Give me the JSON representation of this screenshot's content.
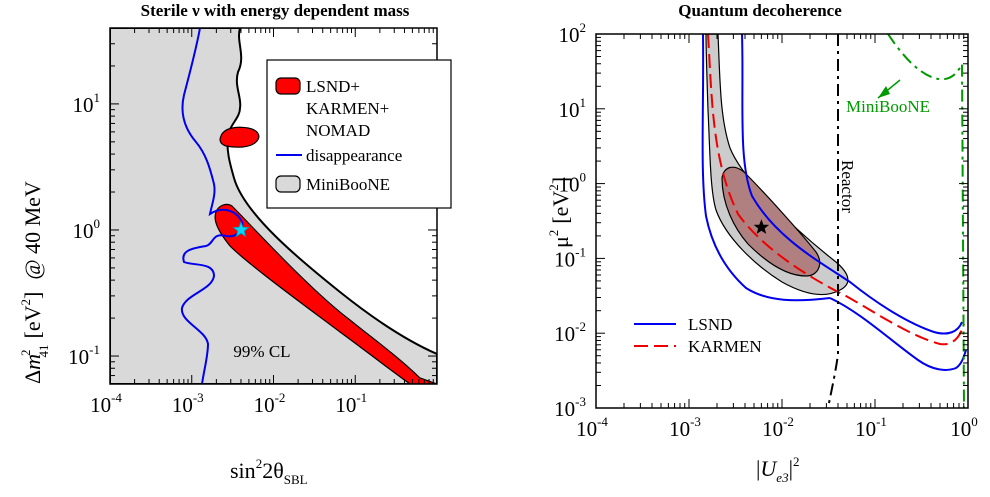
{
  "chart_data": [
    {
      "type": "contour",
      "title": "Sterile ν with energy dependent mass",
      "xlabel": {
        "base": "sin",
        "sup1": "2",
        "mid": "2θ",
        "sub": "SBL"
      },
      "ylabel": {
        "pre": "Δ",
        "var": "m",
        "sup": "2",
        "sub": "41",
        "unit": "[eV",
        "unit_sup": "2",
        "unit_close": "]",
        "suffix": "@ 40 MeV"
      },
      "xscale": "log",
      "yscale": "log",
      "xlim": [
        0.0001,
        1.0
      ],
      "ylim": [
        0.06,
        40
      ],
      "xticks": [
        {
          "value": 0.0001,
          "base": "10",
          "exp": "-4"
        },
        {
          "value": 0.001,
          "base": "10",
          "exp": "-3"
        },
        {
          "value": 0.01,
          "base": "10",
          "exp": "-2"
        },
        {
          "value": 0.1,
          "base": "10",
          "exp": "-1"
        }
      ],
      "yticks": [
        {
          "value": 0.1,
          "base": "10",
          "exp": "-1"
        },
        {
          "value": 1,
          "base": "10",
          "exp": "0"
        },
        {
          "value": 10,
          "base": "10",
          "exp": "1"
        }
      ],
      "legend": {
        "placement": "top-right",
        "entries": [
          {
            "lines": [
              "LSND+",
              "KARMEN+",
              "NOMAD"
            ],
            "style": "red-filled-region"
          },
          {
            "lines": [
              "disappearance"
            ],
            "style": "blue-line"
          },
          {
            "lines": [
              "MiniBooNE"
            ],
            "style": "grey-filled-region"
          }
        ]
      },
      "annotation": "99% CL",
      "best_fit": {
        "x": 0.004,
        "y": 1.0,
        "marker": "star"
      },
      "colors": {
        "red": "#ff0000",
        "blue": "#0000ee",
        "grey": "#d8d8d8",
        "star": "#00d8ff"
      }
    },
    {
      "type": "contour",
      "title": "Quantum decoherence",
      "xlabel": {
        "bar": "|",
        "var": "U",
        "sub": "e3",
        "sup": "2"
      },
      "ylabel": {
        "var": "μ",
        "sup": "2",
        "unit": "[eV",
        "unit_sup": "2",
        "unit_close": "]"
      },
      "xscale": "log",
      "yscale": "log",
      "xlim": [
        0.0001,
        1.0
      ],
      "ylim": [
        0.001,
        100
      ],
      "xticks": [
        {
          "value": 0.0001,
          "base": "10",
          "exp": "-4"
        },
        {
          "value": 0.001,
          "base": "10",
          "exp": "-3"
        },
        {
          "value": 0.01,
          "base": "10",
          "exp": "-2"
        },
        {
          "value": 0.1,
          "base": "10",
          "exp": "-1"
        },
        {
          "value": 1,
          "base": "10",
          "exp": "0"
        }
      ],
      "yticks": [
        {
          "value": 0.001,
          "base": "10",
          "exp": "-3"
        },
        {
          "value": 0.01,
          "base": "10",
          "exp": "-2"
        },
        {
          "value": 0.1,
          "base": "10",
          "exp": "-1"
        },
        {
          "value": 1,
          "base": "10",
          "exp": "0"
        },
        {
          "value": 10,
          "base": "10",
          "exp": "1"
        },
        {
          "value": 100,
          "base": "10",
          "exp": "2"
        }
      ],
      "legend": {
        "placement": "bottom-left",
        "entries": [
          {
            "label": "LSND",
            "style": "blue-line"
          },
          {
            "label": "KARMEN",
            "style": "red-dashed"
          }
        ]
      },
      "annotations": [
        "Reactor",
        "MiniBooNE"
      ],
      "best_fit": {
        "x": 0.006,
        "y": 0.26,
        "marker": "star"
      },
      "colors": {
        "blue": "#0000ee",
        "red": "#ee0000",
        "grey": "#cccccc",
        "inner": "#b08080",
        "green": "#009900"
      }
    }
  ]
}
